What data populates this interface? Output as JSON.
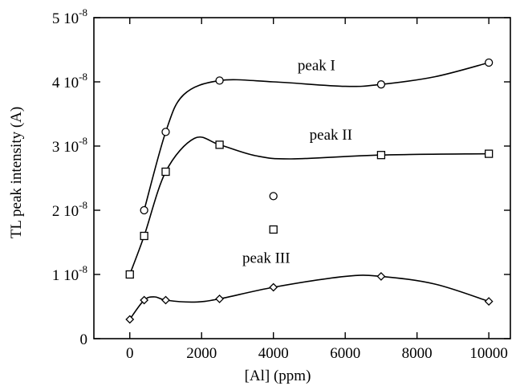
{
  "chart_data": {
    "type": "scatter",
    "xlabel": "[Al] (ppm)",
    "ylabel": "TL peak intensity (A)",
    "xlim": [
      -1000,
      10600
    ],
    "ylim": [
      0,
      5e-08
    ],
    "x_ticks": [
      0,
      2000,
      4000,
      6000,
      8000,
      10000
    ],
    "x_tick_labels": [
      "0",
      "2000",
      "4000",
      "6000",
      "8000",
      "10000"
    ],
    "y_ticks": [
      0,
      1e-08,
      2e-08,
      3e-08,
      4e-08,
      5e-08
    ],
    "y_tick_labels": [
      {
        "mantissa": "0",
        "exponent": ""
      },
      {
        "mantissa": "1 10",
        "exponent": "-8"
      },
      {
        "mantissa": "2 10",
        "exponent": "-8"
      },
      {
        "mantissa": "3 10",
        "exponent": "-8"
      },
      {
        "mantissa": "4 10",
        "exponent": "-8"
      },
      {
        "mantissa": "5 10",
        "exponent": "-8"
      }
    ],
    "grid": false,
    "series": [
      {
        "name": "peak I",
        "marker": "circle",
        "points": [
          [
            400,
            2e-08
          ],
          [
            1000,
            3.22e-08
          ],
          [
            2500,
            4.02e-08
          ],
          [
            7000,
            3.96e-08
          ],
          [
            10000,
            4.3e-08
          ]
        ],
        "curve": [
          [
            400,
            2e-08
          ],
          [
            1000,
            3.22e-08
          ],
          [
            1500,
            3.8e-08
          ],
          [
            2500,
            4.02e-08
          ],
          [
            4000,
            4e-08
          ],
          [
            6000,
            3.93e-08
          ],
          [
            7000,
            3.96e-08
          ],
          [
            8500,
            4.08e-08
          ],
          [
            10000,
            4.3e-08
          ]
        ]
      },
      {
        "name": "peak II",
        "marker": "square",
        "points": [
          [
            0,
            1e-08
          ],
          [
            400,
            1.6e-08
          ],
          [
            1000,
            2.6e-08
          ],
          [
            2500,
            3.02e-08
          ],
          [
            7000,
            2.86e-08
          ],
          [
            10000,
            2.88e-08
          ]
        ],
        "curve": [
          [
            0,
            1e-08
          ],
          [
            400,
            1.6e-08
          ],
          [
            1000,
            2.6e-08
          ],
          [
            1800,
            3.12e-08
          ],
          [
            2500,
            3.02e-08
          ],
          [
            3500,
            2.85e-08
          ],
          [
            4500,
            2.8e-08
          ],
          [
            7000,
            2.86e-08
          ],
          [
            10000,
            2.88e-08
          ]
        ]
      },
      {
        "name": "peak III",
        "marker": "diamond",
        "points": [
          [
            0,
            3e-09
          ],
          [
            400,
            6e-09
          ],
          [
            1000,
            6e-09
          ],
          [
            2500,
            6.2e-09
          ],
          [
            4000,
            8e-09
          ],
          [
            7000,
            9.7e-09
          ],
          [
            10000,
            5.8e-09
          ]
        ],
        "curve": [
          [
            0,
            3e-09
          ],
          [
            400,
            6e-09
          ],
          [
            700,
            6.5e-09
          ],
          [
            1000,
            6e-09
          ],
          [
            1800,
            5.7e-09
          ],
          [
            2500,
            6.2e-09
          ],
          [
            4000,
            8e-09
          ],
          [
            6000,
            9.7e-09
          ],
          [
            7000,
            9.7e-09
          ],
          [
            8500,
            8.5e-09
          ],
          [
            10000,
            5.8e-09
          ]
        ]
      }
    ],
    "outliers": [
      {
        "marker": "circle",
        "x": 4000,
        "y": 2.22e-08
      },
      {
        "marker": "square",
        "x": 4000,
        "y": 1.7e-08
      }
    ],
    "annotations": [
      {
        "text": "peak I",
        "x": 5200,
        "y": 4.18e-08
      },
      {
        "text": "peak II",
        "x": 5600,
        "y": 3.1e-08
      },
      {
        "text": "peak III",
        "x": 3800,
        "y": 1.18e-08
      }
    ]
  }
}
